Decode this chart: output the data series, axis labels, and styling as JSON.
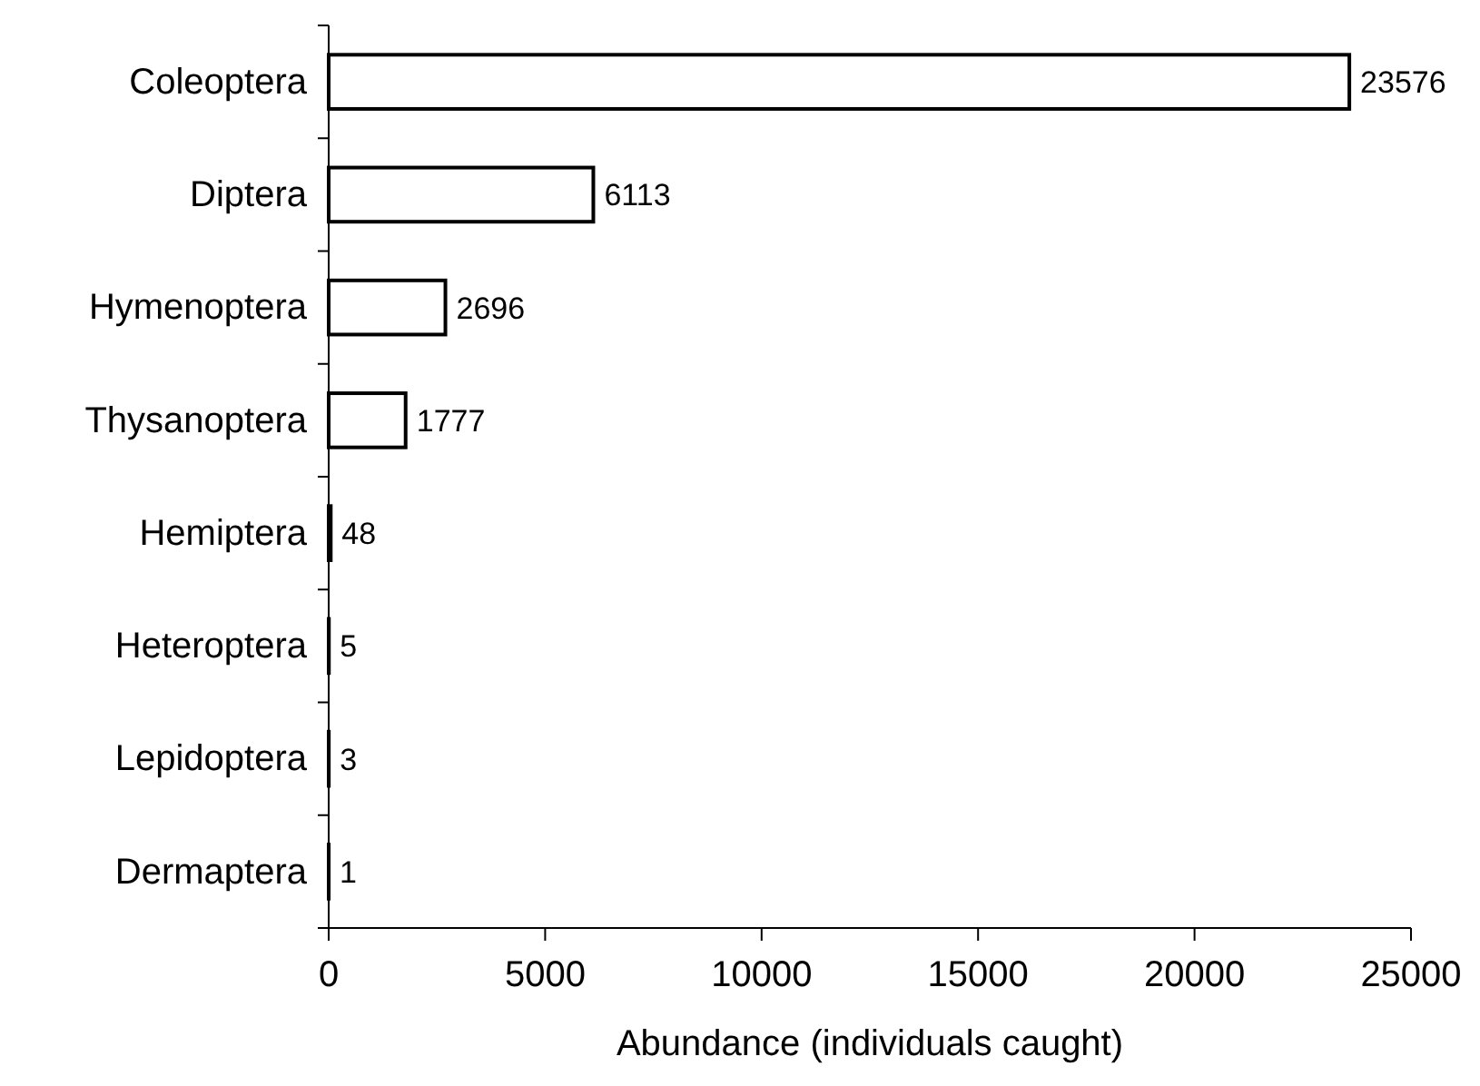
{
  "chart_data": {
    "type": "bar",
    "orientation": "horizontal",
    "categories": [
      "Coleoptera",
      "Diptera",
      "Hymenoptera",
      "Thysanoptera",
      "Hemiptera",
      "Heteroptera",
      "Lepidoptera",
      "Dermaptera"
    ],
    "values": [
      23576,
      6113,
      2696,
      1777,
      48,
      5,
      3,
      1
    ],
    "color": "#ffffff",
    "xlim": [
      0,
      25000
    ],
    "xticks": [
      0,
      5000,
      10000,
      15000,
      20000,
      25000
    ],
    "xlabel": "Abundance (individuals caught)",
    "data_labels": true
  }
}
